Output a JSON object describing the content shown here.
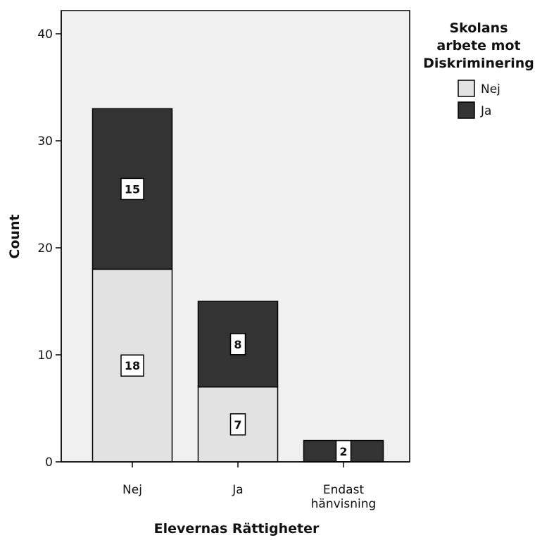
{
  "chart_data": {
    "type": "bar",
    "stacked": true,
    "title": "",
    "xlabel": "Elevernas Rättigheter",
    "ylabel": "Count",
    "categories": [
      "Nej",
      "Ja",
      "Endast hänvisning"
    ],
    "category_lines": [
      [
        "Nej"
      ],
      [
        "Ja"
      ],
      [
        "Endast",
        "hänvisning"
      ]
    ],
    "yticks": [
      "0",
      "10",
      "20",
      "30",
      "40"
    ],
    "ylim": [
      0,
      42
    ],
    "grid": false,
    "legend": {
      "title_lines": [
        "Skolans",
        "arbete mot",
        "Diskriminering"
      ],
      "placement": "right"
    },
    "series": [
      {
        "name": "Nej",
        "color": "#e2e2e2",
        "values": [
          18,
          7,
          0
        ],
        "labels": [
          "18",
          "7",
          ""
        ]
      },
      {
        "name": "Ja",
        "color": "#333333",
        "values": [
          15,
          8,
          2
        ],
        "labels": [
          "15",
          "8",
          "2"
        ]
      }
    ],
    "plot_background": "#f0f0f0"
  }
}
